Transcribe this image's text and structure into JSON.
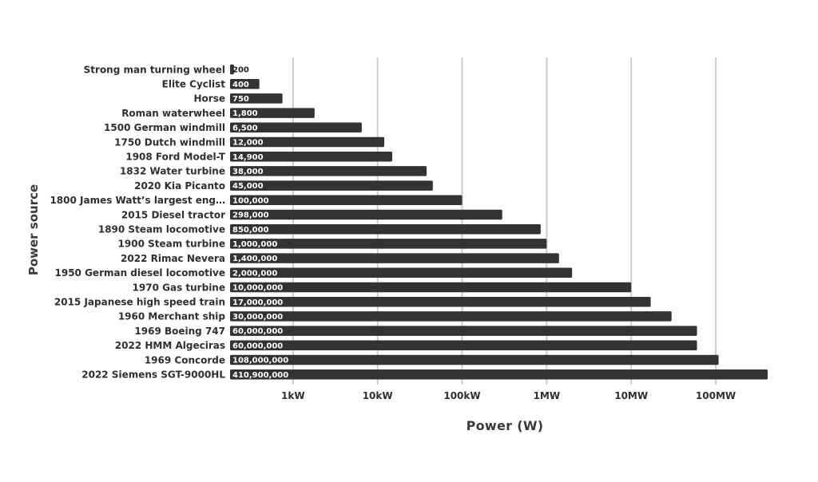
{
  "chart_data": {
    "type": "bar",
    "orientation": "horizontal",
    "xscale": "log",
    "xlim": [
      180,
      500000000
    ],
    "xlabel": "Power (W)",
    "ylabel": "Power source",
    "grid": true,
    "bar_color": "#333333",
    "grid_color": "#cccccc",
    "categories": [
      "Strong man turning wheel",
      "Elite Cyclist",
      "Horse",
      "Roman waterwheel",
      "1500 German windmill",
      "1750 Dutch windmill",
      "1908 Ford Model-T",
      "1832 Water turbine",
      "2020 Kia Picanto",
      "1800 James Watt’s largest eng…",
      "2015 Diesel tractor",
      "1890 Steam locomotive",
      "1900 Steam turbine",
      "2022 Rimac Nevera",
      "1950 German diesel locomotive",
      "1970 Gas turbine",
      "2015 Japanese high speed train",
      "1960 Merchant ship",
      "1969 Boeing 747",
      "2022 HMM Algeciras",
      "1969 Concorde",
      "2022 Siemens SGT-9000HL"
    ],
    "values": [
      200,
      400,
      750,
      1800,
      6500,
      12000,
      14900,
      38000,
      45000,
      100000,
      298000,
      850000,
      1000000,
      1400000,
      2000000,
      10000000,
      17000000,
      30000000,
      60000000,
      60000000,
      108000000,
      410900000
    ],
    "value_labels": [
      "200",
      "400",
      "750",
      "1,800",
      "6,500",
      "12,000",
      "14,900",
      "38,000",
      "45,000",
      "100,000",
      "298,000",
      "850,000",
      "1,000,000",
      "1,400,000",
      "2,000,000",
      "10,000,000",
      "17,000,000",
      "30,000,000",
      "60,000,000",
      "60,000,000",
      "108,000,000",
      "410,900,000"
    ],
    "xticks": [
      1000,
      10000,
      100000,
      1000000,
      10000000,
      100000000
    ],
    "xtick_labels": [
      "1kW",
      "10kW",
      "100kW",
      "1MW",
      "10MW",
      "100MW"
    ]
  }
}
